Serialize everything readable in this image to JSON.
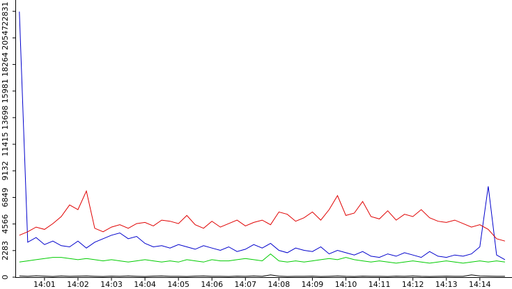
{
  "chart_data": {
    "type": "line",
    "xlim": [
      840.15,
      854.96
    ],
    "xticks": [
      {
        "value": 841,
        "label": "14:01"
      },
      {
        "value": 842,
        "label": "14:02"
      },
      {
        "value": 843,
        "label": "14:03"
      },
      {
        "value": 844,
        "label": "14:04"
      },
      {
        "value": 845,
        "label": "14:05"
      },
      {
        "value": 846,
        "label": "14:06"
      },
      {
        "value": 847,
        "label": "14:07"
      },
      {
        "value": 848,
        "label": "14:08"
      },
      {
        "value": 849,
        "label": "14:09"
      },
      {
        "value": 850,
        "label": "14:10"
      },
      {
        "value": 851,
        "label": "14:11"
      },
      {
        "value": 852,
        "label": "14:12"
      },
      {
        "value": 853,
        "label": "14:13"
      },
      {
        "value": 854,
        "label": "14:14"
      }
    ],
    "ylim": [
      0,
      23800
    ],
    "yticks": [
      0,
      2283,
      4566,
      6849,
      9132,
      11415,
      13698,
      15981,
      18264,
      20547,
      22831
    ],
    "grid": false,
    "x": [
      840.25,
      840.5,
      840.75,
      841,
      841.25,
      841.5,
      841.75,
      842,
      842.25,
      842.5,
      842.75,
      843,
      843.25,
      843.5,
      843.75,
      844,
      844.25,
      844.5,
      844.75,
      845,
      845.25,
      845.5,
      845.75,
      846,
      846.25,
      846.5,
      846.75,
      847,
      847.25,
      847.5,
      847.75,
      848,
      848.25,
      848.5,
      848.75,
      849,
      849.25,
      849.5,
      849.75,
      850,
      850.25,
      850.5,
      850.75,
      851,
      851.25,
      851.5,
      851.75,
      852,
      852.25,
      852.5,
      852.75,
      853,
      853.25,
      853.5,
      853.75,
      854,
      854.25,
      854.5,
      854.75
    ],
    "series": [
      {
        "color": "#e00000",
        "values": [
          3600,
          3900,
          4300,
          4100,
          4600,
          5200,
          6200,
          5800,
          7400,
          4200,
          3900,
          4300,
          4500,
          4200,
          4600,
          4700,
          4400,
          4900,
          4800,
          4600,
          5300,
          4500,
          4200,
          4800,
          4300,
          4600,
          4900,
          4400,
          4700,
          4900,
          4500,
          5600,
          5400,
          4800,
          5100,
          5600,
          4900,
          5800,
          7000,
          5300,
          5500,
          6500,
          5200,
          5000,
          5700,
          4900,
          5400,
          5200,
          5800,
          5100,
          4800,
          4700,
          4900,
          4600,
          4300,
          4500,
          4100,
          3300,
          3100
        ]
      },
      {
        "color": "#0000cc",
        "values": [
          22800,
          3000,
          3400,
          2800,
          3100,
          2700,
          2600,
          3100,
          2500,
          3000,
          3300,
          3600,
          3800,
          3300,
          3500,
          2900,
          2600,
          2700,
          2500,
          2800,
          2600,
          2400,
          2700,
          2500,
          2300,
          2600,
          2200,
          2400,
          2800,
          2500,
          2900,
          2300,
          2100,
          2500,
          2300,
          2200,
          2600,
          2000,
          2300,
          2100,
          1900,
          2200,
          1800,
          1700,
          2000,
          1800,
          2100,
          1900,
          1700,
          2200,
          1800,
          1700,
          1900,
          1800,
          2000,
          2600,
          7800,
          1900,
          1500
        ]
      },
      {
        "color": "#00cc00",
        "values": [
          1300,
          1400,
          1500,
          1600,
          1700,
          1700,
          1600,
          1500,
          1600,
          1500,
          1400,
          1500,
          1400,
          1300,
          1400,
          1500,
          1400,
          1300,
          1400,
          1300,
          1500,
          1400,
          1300,
          1500,
          1400,
          1400,
          1500,
          1600,
          1500,
          1400,
          2000,
          1400,
          1300,
          1400,
          1300,
          1400,
          1500,
          1600,
          1500,
          1700,
          1500,
          1400,
          1300,
          1400,
          1300,
          1200,
          1300,
          1400,
          1300,
          1200,
          1300,
          1400,
          1300,
          1200,
          1300,
          1400,
          1300,
          1400,
          1300
        ]
      },
      {
        "color": "#000000",
        "values": [
          100,
          80,
          120,
          90,
          60,
          110,
          70,
          90,
          100,
          80,
          60,
          90,
          70,
          100,
          80,
          60,
          90,
          110,
          70,
          80,
          60,
          90,
          100,
          70,
          80,
          60,
          90,
          80,
          100,
          70,
          200,
          90,
          60,
          80,
          70,
          90,
          60,
          80,
          100,
          70,
          60,
          90,
          80,
          70,
          60,
          90,
          80,
          100,
          70,
          60,
          80,
          90,
          70,
          80,
          200,
          100,
          90,
          80,
          70
        ]
      }
    ]
  }
}
